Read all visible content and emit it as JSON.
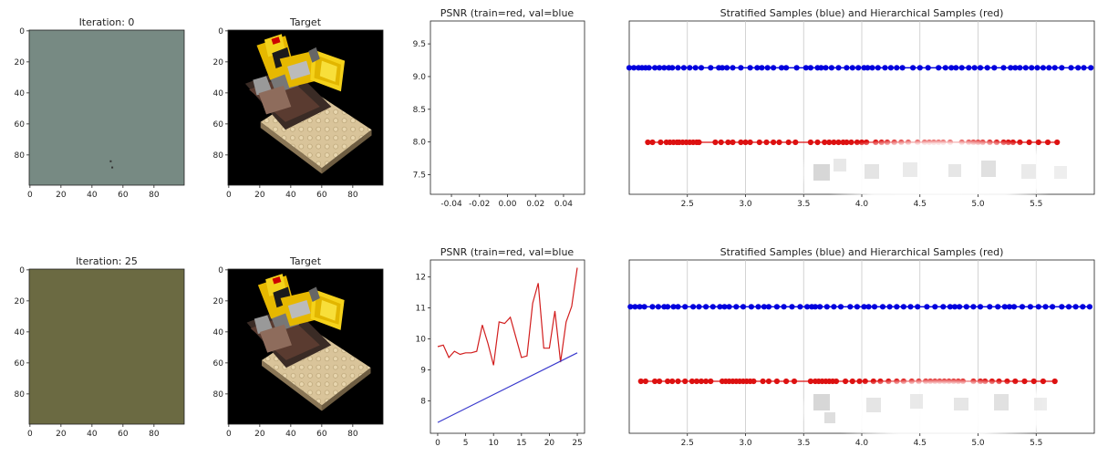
{
  "chart_data": [
    {
      "id": "img-iter0",
      "type": "image",
      "title": "Iteration: 0",
      "x_ticks": [
        "0",
        "20",
        "40",
        "60",
        "80"
      ],
      "y_ticks": [
        "0",
        "20",
        "40",
        "60",
        "80"
      ],
      "fill_color": "#778a83",
      "specks": [
        [
          52,
          84
        ],
        [
          53,
          88
        ]
      ]
    },
    {
      "id": "img-target0",
      "type": "image",
      "title": "Target",
      "x_ticks": [
        "0",
        "20",
        "40",
        "60",
        "80"
      ],
      "y_ticks": [
        "0",
        "20",
        "40",
        "60",
        "80"
      ],
      "content": "lego bulldozer rendering on black background"
    },
    {
      "id": "psnr0",
      "type": "line",
      "title": "PSNR (train=red, val=blue",
      "xlim": [
        -0.055,
        0.055
      ],
      "ylim": [
        7.2,
        9.85
      ],
      "x_ticks": [
        "-0.04",
        "-0.02",
        "0.00",
        "0.02",
        "0.04"
      ],
      "x_tick_values": [
        -0.04,
        -0.02,
        0.0,
        0.02,
        0.04
      ],
      "y_ticks": [
        "7.5",
        "8.0",
        "8.5",
        "9.0",
        "9.5"
      ],
      "y_tick_values": [
        7.5,
        8.0,
        8.5,
        9.0,
        9.5
      ],
      "series": []
    },
    {
      "id": "samples0",
      "type": "scatter",
      "title": "Stratified  Samples (blue) and Hierarchical Samples (red)",
      "xlim": [
        2.0,
        6.0
      ],
      "ylim": [
        0,
        1
      ],
      "grid": true,
      "x_ticks": [
        "2.5",
        "3.0",
        "3.5",
        "4.0",
        "4.5",
        "5.0",
        "5.5"
      ],
      "x_tick_values": [
        2.5,
        3.0,
        3.5,
        4.0,
        4.5,
        5.0,
        5.5
      ],
      "series": [
        {
          "color": "#0000dd",
          "y": 0.73,
          "x": [
            2.0,
            2.04,
            2.08,
            2.11,
            2.14,
            2.17,
            2.22,
            2.26,
            2.3,
            2.34,
            2.37,
            2.42,
            2.47,
            2.52,
            2.57,
            2.62,
            2.7,
            2.77,
            2.8,
            2.84,
            2.89,
            2.96,
            3.04,
            3.1,
            3.14,
            3.19,
            3.24,
            3.31,
            3.35,
            3.44,
            3.52,
            3.56,
            3.62,
            3.65,
            3.69,
            3.74,
            3.8,
            3.87,
            3.92,
            3.97,
            4.02,
            4.05,
            4.09,
            4.14,
            4.2,
            4.25,
            4.3,
            4.35,
            4.44,
            4.5,
            4.57,
            4.66,
            4.72,
            4.77,
            4.81,
            4.86,
            4.92,
            4.97,
            5.02,
            5.08,
            5.14,
            5.22,
            5.28,
            5.32,
            5.36,
            5.41,
            5.46,
            5.51,
            5.56,
            5.61,
            5.66,
            5.72,
            5.8,
            5.86,
            5.91,
            5.97
          ]
        },
        {
          "color": "#dd1111",
          "y": 0.3,
          "x": [
            2.16,
            2.2,
            2.27,
            2.32,
            2.35,
            2.38,
            2.41,
            2.43,
            2.46,
            2.49,
            2.52,
            2.55,
            2.58,
            2.6,
            2.74,
            2.79,
            2.85,
            2.89,
            2.96,
            3.0,
            3.04,
            3.12,
            3.18,
            3.24,
            3.29,
            3.37,
            3.43,
            3.56,
            3.62,
            3.68,
            3.72,
            3.76,
            3.8,
            3.84,
            3.87,
            3.91,
            3.96,
            4.0,
            4.04,
            4.12,
            4.17,
            4.22,
            4.28,
            4.34,
            4.4,
            4.48,
            4.54,
            4.58,
            4.62,
            4.66,
            4.7,
            4.76,
            4.86,
            4.92,
            4.96,
            5.0,
            5.04,
            5.1,
            5.16,
            5.22,
            5.26,
            5.3,
            5.36,
            5.44,
            5.52,
            5.6,
            5.68
          ]
        }
      ]
    },
    {
      "id": "img-iter25",
      "type": "image",
      "title": "Iteration: 25",
      "x_ticks": [
        "0",
        "20",
        "40",
        "60",
        "80"
      ],
      "y_ticks": [
        "0",
        "20",
        "40",
        "60",
        "80"
      ],
      "fill_color": "#6b6a42"
    },
    {
      "id": "img-target25",
      "type": "image",
      "title": "Target",
      "x_ticks": [
        "0",
        "20",
        "40",
        "60",
        "80"
      ],
      "y_ticks": [
        "0",
        "20",
        "40",
        "60",
        "80"
      ],
      "content": "lego bulldozer rendering on black background"
    },
    {
      "id": "psnr25",
      "type": "line",
      "title": "PSNR (train=red, val=blue",
      "xlim": [
        -1.3,
        26.3
      ],
      "ylim": [
        6.95,
        12.55
      ],
      "x_ticks": [
        "0",
        "5",
        "10",
        "15",
        "20",
        "25"
      ],
      "x_tick_values": [
        0,
        5,
        10,
        15,
        20,
        25
      ],
      "y_ticks": [
        "8",
        "9",
        "10",
        "11",
        "12"
      ],
      "y_tick_values": [
        8,
        9,
        10,
        11,
        12
      ],
      "series": [
        {
          "color": "#d21e1e",
          "x": [
            0,
            1,
            2,
            3,
            4,
            5,
            6,
            7,
            8,
            9,
            10,
            11,
            12,
            13,
            14,
            15,
            16,
            17,
            18,
            19,
            20,
            21,
            22,
            23,
            24,
            25
          ],
          "values": [
            9.75,
            9.8,
            9.4,
            9.6,
            9.5,
            9.55,
            9.55,
            9.6,
            10.45,
            9.85,
            9.15,
            10.55,
            10.5,
            10.7,
            10.05,
            9.4,
            9.45,
            11.15,
            11.8,
            9.7,
            9.7,
            10.9,
            9.25,
            10.55,
            11.05,
            12.3
          ]
        },
        {
          "color": "#3a3acd",
          "x": [
            0,
            25
          ],
          "values": [
            7.3,
            9.55
          ]
        }
      ]
    },
    {
      "id": "samples25",
      "type": "scatter",
      "title": "Stratified  Samples (blue) and Hierarchical Samples (red)",
      "xlim": [
        2.0,
        6.0
      ],
      "ylim": [
        0,
        1
      ],
      "grid": true,
      "x_ticks": [
        "2.5",
        "3.0",
        "3.5",
        "4.0",
        "4.5",
        "5.0",
        "5.5"
      ],
      "x_tick_values": [
        2.5,
        3.0,
        3.5,
        4.0,
        4.5,
        5.0,
        5.5
      ],
      "series": [
        {
          "color": "#0000dd",
          "y": 0.73,
          "x": [
            2.01,
            2.05,
            2.09,
            2.13,
            2.2,
            2.25,
            2.3,
            2.33,
            2.38,
            2.42,
            2.48,
            2.55,
            2.6,
            2.66,
            2.72,
            2.78,
            2.82,
            2.86,
            2.92,
            2.98,
            3.05,
            3.11,
            3.16,
            3.2,
            3.27,
            3.33,
            3.4,
            3.47,
            3.53,
            3.57,
            3.6,
            3.64,
            3.7,
            3.76,
            3.82,
            3.9,
            3.96,
            4.02,
            4.06,
            4.11,
            4.18,
            4.24,
            4.3,
            4.36,
            4.42,
            4.48,
            4.56,
            4.63,
            4.7,
            4.76,
            4.8,
            4.84,
            4.9,
            4.96,
            5.02,
            5.1,
            5.17,
            5.23,
            5.27,
            5.31,
            5.38,
            5.45,
            5.52,
            5.58,
            5.64,
            5.72,
            5.78,
            5.84,
            5.9,
            5.96
          ]
        },
        {
          "color": "#dd1111",
          "y": 0.3,
          "x": [
            2.1,
            2.14,
            2.22,
            2.26,
            2.33,
            2.37,
            2.42,
            2.48,
            2.54,
            2.58,
            2.62,
            2.66,
            2.7,
            2.8,
            2.83,
            2.86,
            2.89,
            2.92,
            2.95,
            2.98,
            3.01,
            3.04,
            3.07,
            3.15,
            3.2,
            3.27,
            3.35,
            3.42,
            3.56,
            3.6,
            3.63,
            3.66,
            3.69,
            3.72,
            3.75,
            3.78,
            3.86,
            3.92,
            3.98,
            4.03,
            4.1,
            4.16,
            4.23,
            4.3,
            4.36,
            4.43,
            4.49,
            4.55,
            4.59,
            4.63,
            4.67,
            4.71,
            4.75,
            4.79,
            4.83,
            4.87,
            4.96,
            5.02,
            5.06,
            5.12,
            5.18,
            5.25,
            5.32,
            5.4,
            5.48,
            5.56,
            5.66
          ]
        }
      ]
    }
  ]
}
